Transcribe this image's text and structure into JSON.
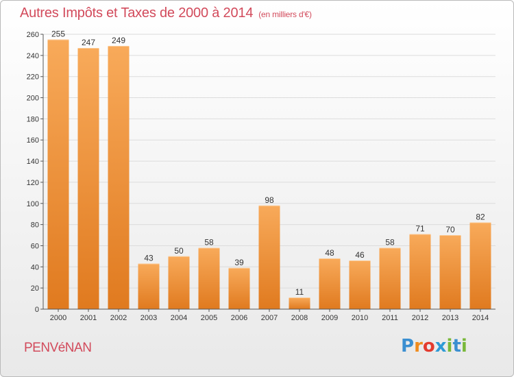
{
  "header": {
    "title": "Autres Impôts et Taxes de 2000 à 2014",
    "subtitle": "(en milliers d'€)"
  },
  "footer": {
    "commune": "PENVéNAN",
    "logo": [
      "P",
      "r",
      "o",
      "x",
      "i",
      "t",
      "i"
    ]
  },
  "colors": {
    "bar_light": "#f8aa5a",
    "bar_dark": "#e07a1f",
    "title": "#d24a5b",
    "grid": "#dcdcdc"
  },
  "chart_data": {
    "type": "bar",
    "title": "Autres Impôts et Taxes de 2000 à 2014",
    "subtitle": "(en milliers d'€)",
    "categories": [
      "2000",
      "2001",
      "2002",
      "2003",
      "2004",
      "2005",
      "2006",
      "2007",
      "2008",
      "2009",
      "2010",
      "2011",
      "2012",
      "2013",
      "2014"
    ],
    "values": [
      255,
      247,
      249,
      43,
      50,
      58,
      39,
      98,
      11,
      48,
      46,
      58,
      71,
      70,
      82
    ],
    "ylim": [
      0,
      260
    ],
    "yticks": [
      0,
      20,
      40,
      60,
      80,
      100,
      120,
      140,
      160,
      180,
      200,
      220,
      240,
      260
    ],
    "grid": "horizontal",
    "data_labels": true
  }
}
